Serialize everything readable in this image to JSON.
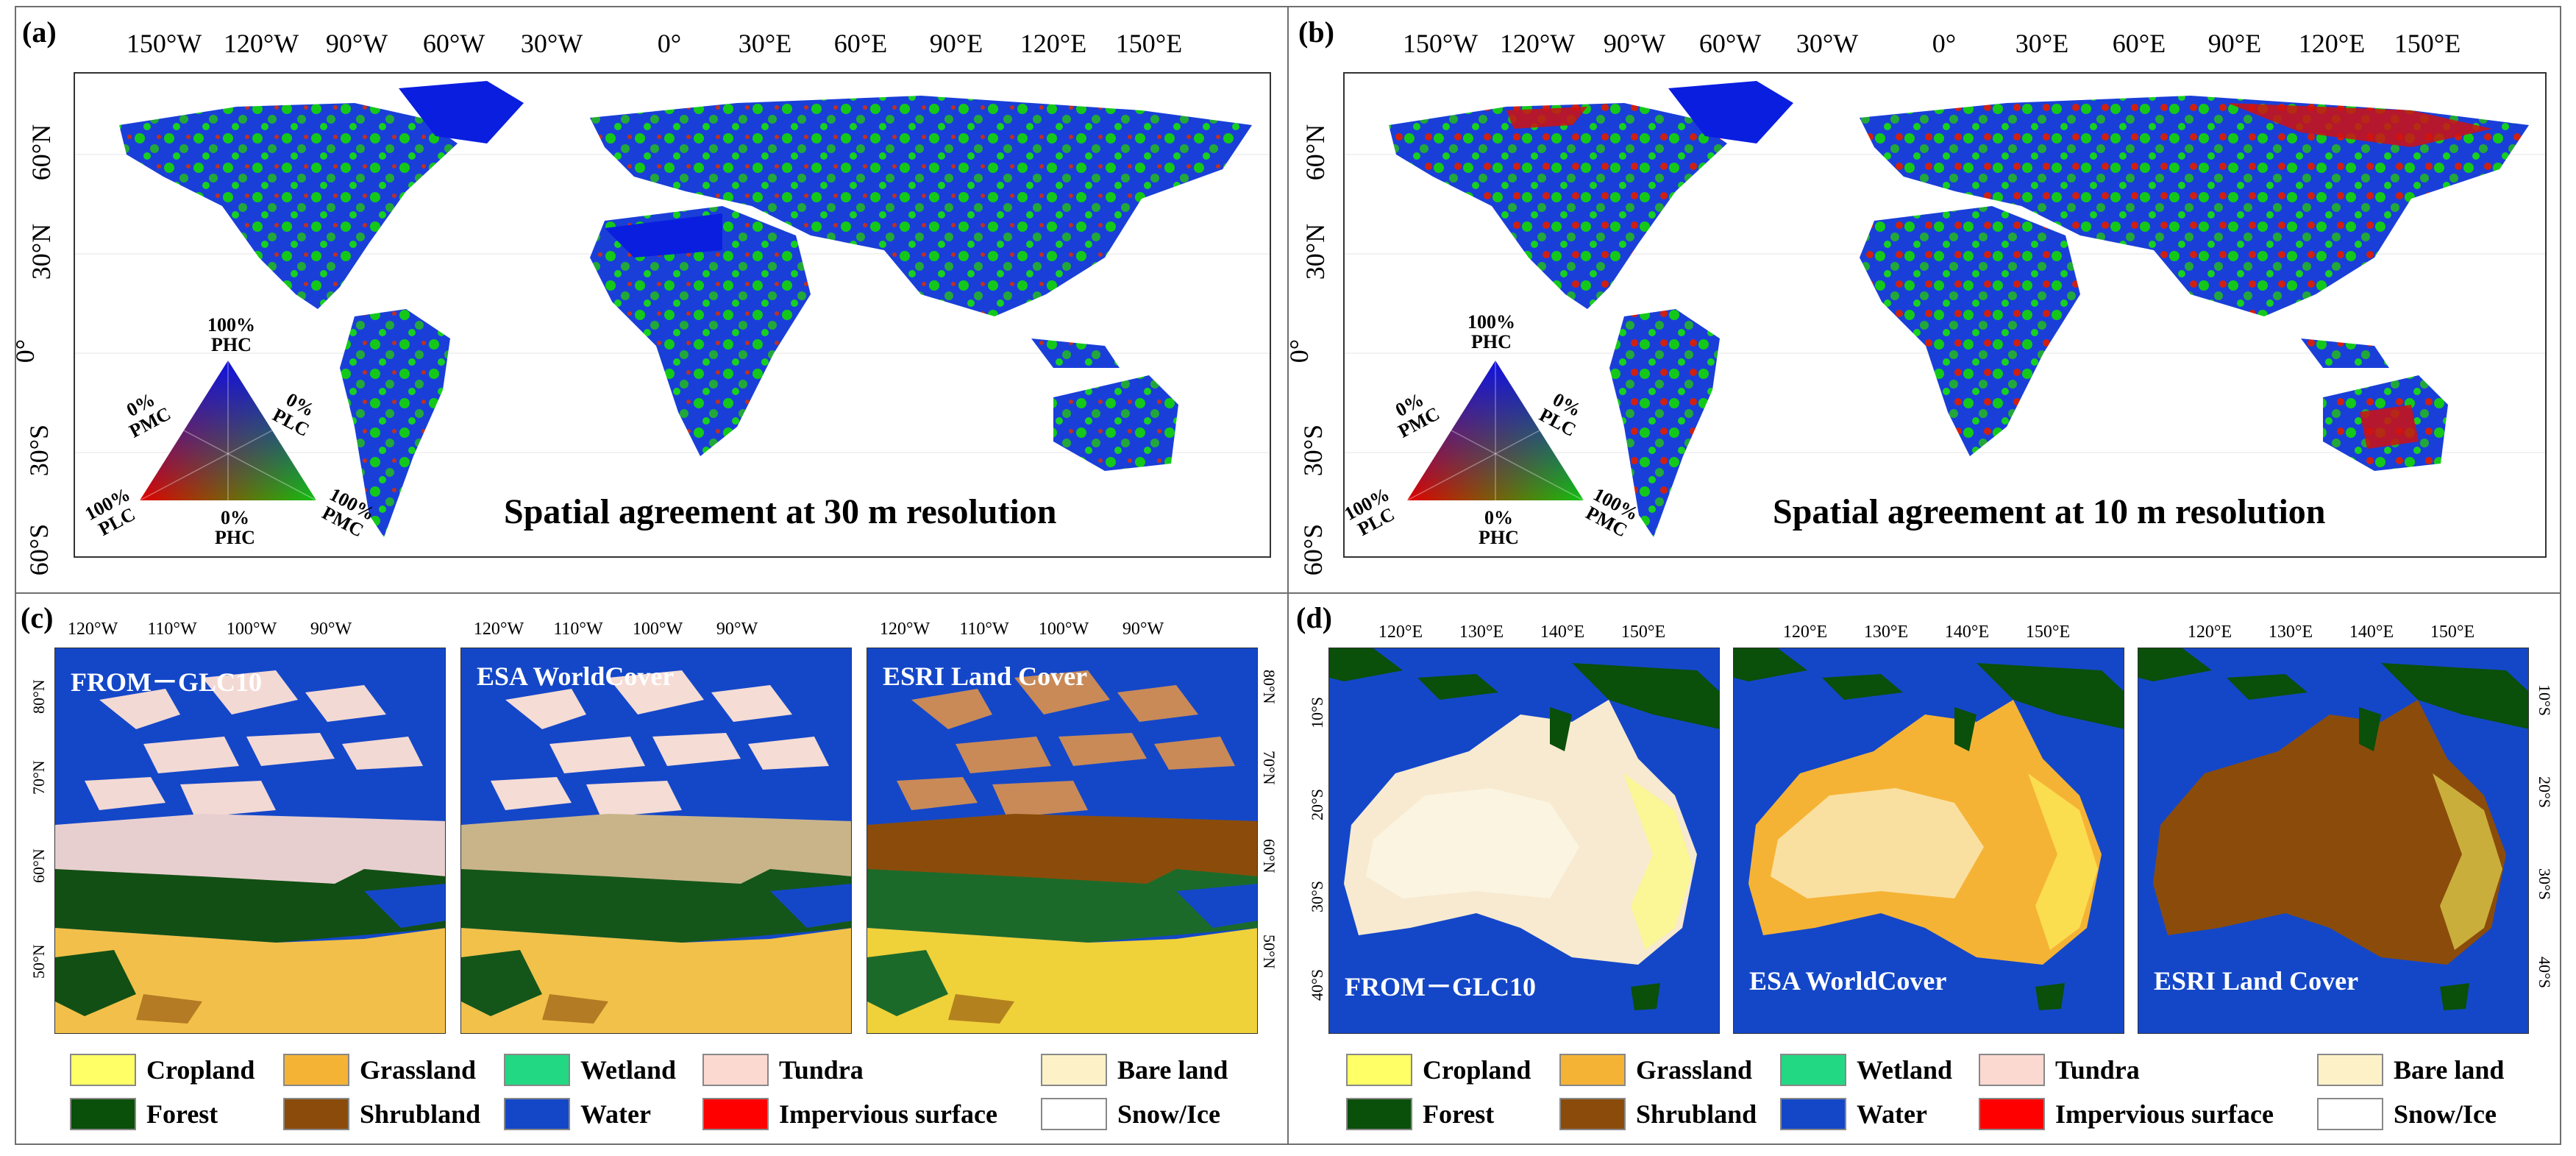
{
  "panels": {
    "a": {
      "letter": "(a)",
      "title": "Spatial agreement at 30 m resolution",
      "lon_ticks": [
        "150°W",
        "120°W",
        "90°W",
        "60°W",
        "30°W",
        "0°",
        "30°E",
        "60°E",
        "90°E",
        "120°E",
        "150°E"
      ],
      "lat_ticks": [
        "60°N",
        "30°N",
        "0°",
        "30°S",
        "60°S"
      ]
    },
    "b": {
      "letter": "(b)",
      "title": "Spatial agreement at 10 m resolution",
      "lon_ticks": [
        "150°W",
        "120°W",
        "90°W",
        "60°W",
        "30°W",
        "0°",
        "30°E",
        "60°E",
        "90°E",
        "120°E",
        "150°E"
      ],
      "lat_ticks": [
        "60°N",
        "30°N",
        "0°",
        "30°S",
        "60°S"
      ]
    },
    "c": {
      "letter": "(c)",
      "lon_ticks": [
        "120°W",
        "110°W",
        "100°W",
        "90°W"
      ],
      "lat_ticks": [
        "80°N",
        "70°N",
        "60°N",
        "50°N"
      ],
      "maps": [
        "FROM－GLC10",
        "ESA WorldCover",
        "ESRI Land Cover"
      ]
    },
    "d": {
      "letter": "(d)",
      "lon_ticks": [
        "120°E",
        "130°E",
        "140°E",
        "150°E"
      ],
      "lat_ticks": [
        "10°S",
        "20°S",
        "30°S",
        "40°S"
      ],
      "maps": [
        "FROM－GLC10",
        "ESA WorldCover",
        "ESRI Land Cover"
      ]
    }
  },
  "ternary_legend": {
    "top": "100%\nPHC",
    "left_mid": "0%\nPMC",
    "right_mid": "0%\nPLC",
    "bottom_left": "100%\nPLC",
    "bottom_mid": "0%\nPHC",
    "bottom_right": "100%\nPMC"
  },
  "land_cover_legend": [
    {
      "label": "Cropland",
      "color": "#ffff66"
    },
    {
      "label": "Grassland",
      "color": "#f5b335"
    },
    {
      "label": "Wetland",
      "color": "#22d882"
    },
    {
      "label": "Tundra",
      "color": "#fbd8d0"
    },
    {
      "label": "Bare land",
      "color": "#fdf1c8"
    },
    {
      "label": "Forest",
      "color": "#0a4f0a"
    },
    {
      "label": "Shrubland",
      "color": "#8b4c0b"
    },
    {
      "label": "Water",
      "color": "#1447c8"
    },
    {
      "label": "Impervious surface",
      "color": "#ff0000"
    },
    {
      "label": "Snow/Ice",
      "color": "#ffffff"
    }
  ],
  "colors": {
    "water_bg": "#1447c8",
    "agreement_high": "#0000ff",
    "agreement_mid": "#00d000",
    "agreement_low": "#ff0000"
  }
}
